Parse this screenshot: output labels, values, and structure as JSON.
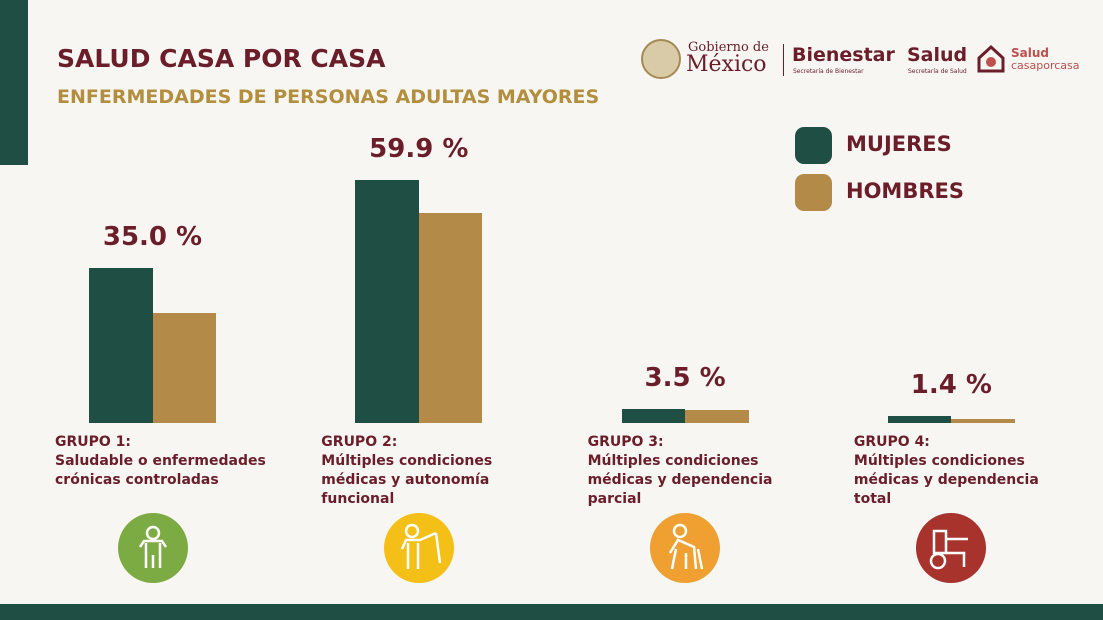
{
  "chart_data": {
    "type": "bar",
    "title": "SALUD CASA POR CASA",
    "subtitle": "ENFERMEDADES DE PERSONAS ADULTAS MAYORES",
    "categories": [
      {
        "group": "GRUPO 1:",
        "description": "Saludable o enfermedades crónicas controladas"
      },
      {
        "group": "GRUPO 2:",
        "description": "Múltiples condiciones médicas y autonomía funcional"
      },
      {
        "group": "GRUPO 3:",
        "description": "Múltiples condiciones médicas y dependencia parcial"
      },
      {
        "group": "GRUPO 4:",
        "description": "Múltiples condiciones médicas y dependencia total"
      }
    ],
    "series": [
      {
        "name": "MUJERES",
        "color": "#1f4e44",
        "values": [
          41.0,
          64.2,
          3.6,
          1.8
        ]
      },
      {
        "name": "HOMBRES",
        "color": "#b38a48",
        "values": [
          29.0,
          55.5,
          3.4,
          1.0
        ]
      }
    ],
    "totals": {
      "values": [
        35.0,
        59.9,
        3.5,
        1.4
      ],
      "value_labels": [
        "35.0 %",
        "59.9 %",
        "3.5 %",
        "1.4 %"
      ]
    }
  },
  "logos": {
    "gobierno": "Gobierno de",
    "mexico": "México",
    "bienestar": "Bienestar",
    "bienestar_sub": "Secretaría de Bienestar",
    "salud": "Salud",
    "salud_sub": "Secretaría de Salud",
    "scpc_top": "Salud",
    "scpc_bottom": "casaporcasa"
  }
}
